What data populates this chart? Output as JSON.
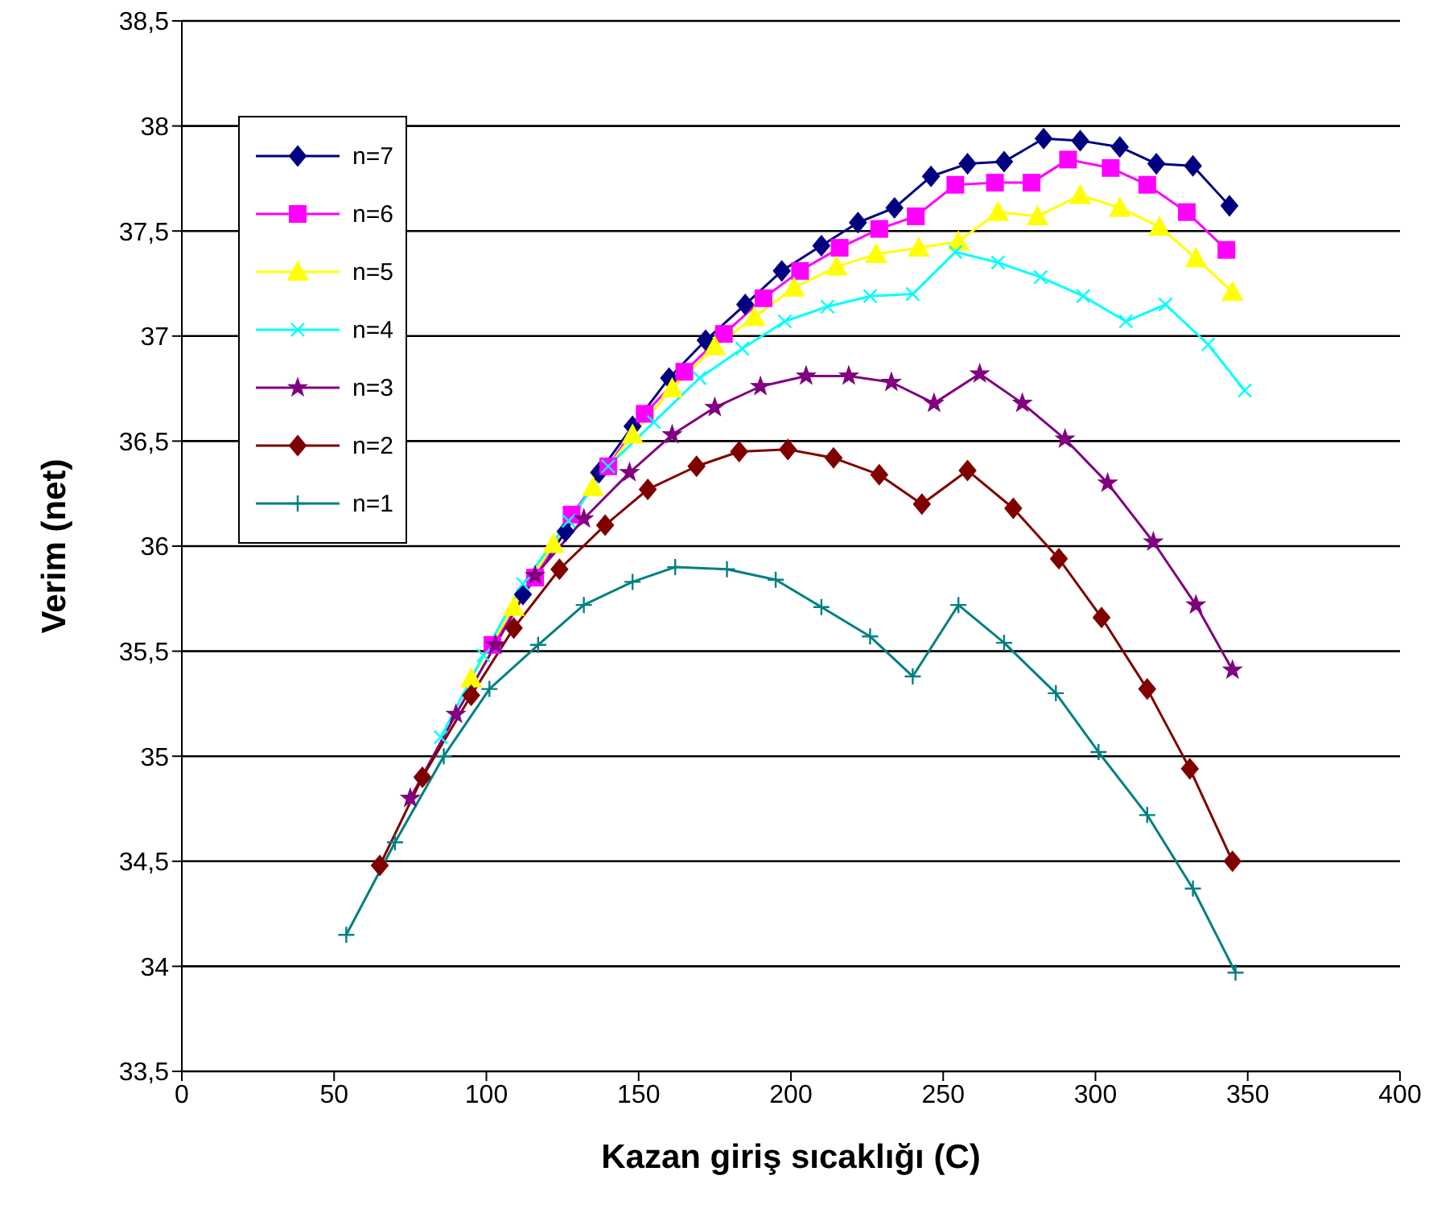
{
  "chart_data": {
    "type": "line",
    "xlabel": "Kazan giriş sıcaklığı (C)",
    "ylabel": "Verim (net)",
    "xlim": [
      0,
      400
    ],
    "xticks": [
      0,
      50,
      100,
      150,
      200,
      250,
      300,
      350,
      400
    ],
    "ylim": [
      33.5,
      38.5
    ],
    "yticks": [
      {
        "value": 33.5,
        "label": "33,5"
      },
      {
        "value": 34,
        "label": "34"
      },
      {
        "value": 34.5,
        "label": "34,5"
      },
      {
        "value": 35,
        "label": "35"
      },
      {
        "value": 35.5,
        "label": "35,5"
      },
      {
        "value": 36,
        "label": "36"
      },
      {
        "value": 36.5,
        "label": "36,5"
      },
      {
        "value": 37,
        "label": "37"
      },
      {
        "value": 37.5,
        "label": "37,5"
      },
      {
        "value": 38,
        "label": "38"
      },
      {
        "value": 38.5,
        "label": "38,5"
      }
    ],
    "grid": "y",
    "legend": "top left",
    "series": [
      {
        "name": "n=7",
        "color": "#000080",
        "marker": "diamond",
        "x": [
          112,
          126,
          137,
          148,
          160,
          172,
          185,
          197,
          210,
          222,
          234,
          246,
          258,
          270,
          283,
          295,
          308,
          320,
          332,
          344
        ],
        "values": [
          35.77,
          36.07,
          36.35,
          36.57,
          36.8,
          36.98,
          37.15,
          37.31,
          37.43,
          37.54,
          37.61,
          37.76,
          37.82,
          37.83,
          37.94,
          37.93,
          37.9,
          37.82,
          37.81,
          37.62
        ]
      },
      {
        "name": "n=6",
        "color": "#ff00ff",
        "marker": "square",
        "x": [
          102,
          116,
          128,
          140,
          152,
          165,
          178,
          191,
          203,
          216,
          229,
          241,
          254,
          267,
          279,
          291,
          305,
          317,
          330,
          343
        ],
        "values": [
          35.53,
          35.85,
          36.15,
          36.38,
          36.63,
          36.83,
          37.01,
          37.18,
          37.31,
          37.42,
          37.51,
          37.57,
          37.72,
          37.73,
          37.73,
          37.84,
          37.8,
          37.72,
          37.59,
          37.41
        ]
      },
      {
        "name": "n=5",
        "color": "#ffff00",
        "marker": "triangle",
        "x": [
          95,
          109,
          122,
          135,
          148,
          161,
          175,
          188,
          201,
          215,
          228,
          242,
          255,
          268,
          281,
          295,
          308,
          321,
          333,
          345
        ],
        "values": [
          35.37,
          35.71,
          36.01,
          36.28,
          36.53,
          36.75,
          36.95,
          37.09,
          37.23,
          37.33,
          37.39,
          37.42,
          37.45,
          37.59,
          37.57,
          37.67,
          37.61,
          37.52,
          37.37,
          37.21
        ]
      },
      {
        "name": "n=4",
        "color": "#00ffff",
        "marker": "x",
        "x": [
          85,
          99,
          112,
          127,
          140,
          155,
          170,
          184,
          198,
          212,
          226,
          240,
          254,
          268,
          282,
          296,
          310,
          323,
          337,
          349
        ],
        "values": [
          35.09,
          35.48,
          35.82,
          36.12,
          36.38,
          36.59,
          36.8,
          36.94,
          37.07,
          37.14,
          37.19,
          37.2,
          37.4,
          37.35,
          37.28,
          37.19,
          37.07,
          37.15,
          36.96,
          36.74
        ]
      },
      {
        "name": "n=3",
        "color": "#800080",
        "marker": "star",
        "x": [
          75,
          90,
          103,
          116,
          132,
          147,
          161,
          175,
          190,
          205,
          219,
          233,
          247,
          262,
          276,
          290,
          304,
          319,
          333,
          345
        ],
        "values": [
          34.8,
          35.2,
          35.53,
          35.86,
          36.13,
          36.35,
          36.53,
          36.66,
          36.76,
          36.81,
          36.81,
          36.78,
          36.68,
          36.82,
          36.68,
          36.51,
          36.3,
          36.02,
          35.72,
          35.41
        ]
      },
      {
        "name": "n=2",
        "color": "#800000",
        "marker": "diamond",
        "x": [
          65,
          79,
          95,
          109,
          124,
          139,
          153,
          169,
          183,
          199,
          214,
          229,
          243,
          258,
          273,
          288,
          302,
          317,
          331,
          345
        ],
        "values": [
          34.48,
          34.9,
          35.29,
          35.61,
          35.89,
          36.1,
          36.27,
          36.38,
          36.45,
          36.46,
          36.42,
          36.34,
          36.2,
          36.36,
          36.18,
          35.94,
          35.66,
          35.32,
          34.94,
          34.5
        ]
      },
      {
        "name": "n=1",
        "color": "#008080",
        "marker": "cross",
        "x": [
          54,
          70,
          86,
          101,
          117,
          132,
          148,
          162,
          179,
          195,
          210,
          226,
          240,
          255,
          270,
          287,
          301,
          317,
          332,
          346
        ],
        "values": [
          34.15,
          34.59,
          35.0,
          35.32,
          35.53,
          35.72,
          35.83,
          35.9,
          35.89,
          35.84,
          35.71,
          35.57,
          35.38,
          35.72,
          35.54,
          35.3,
          35.02,
          34.72,
          34.37,
          33.97
        ]
      }
    ]
  }
}
